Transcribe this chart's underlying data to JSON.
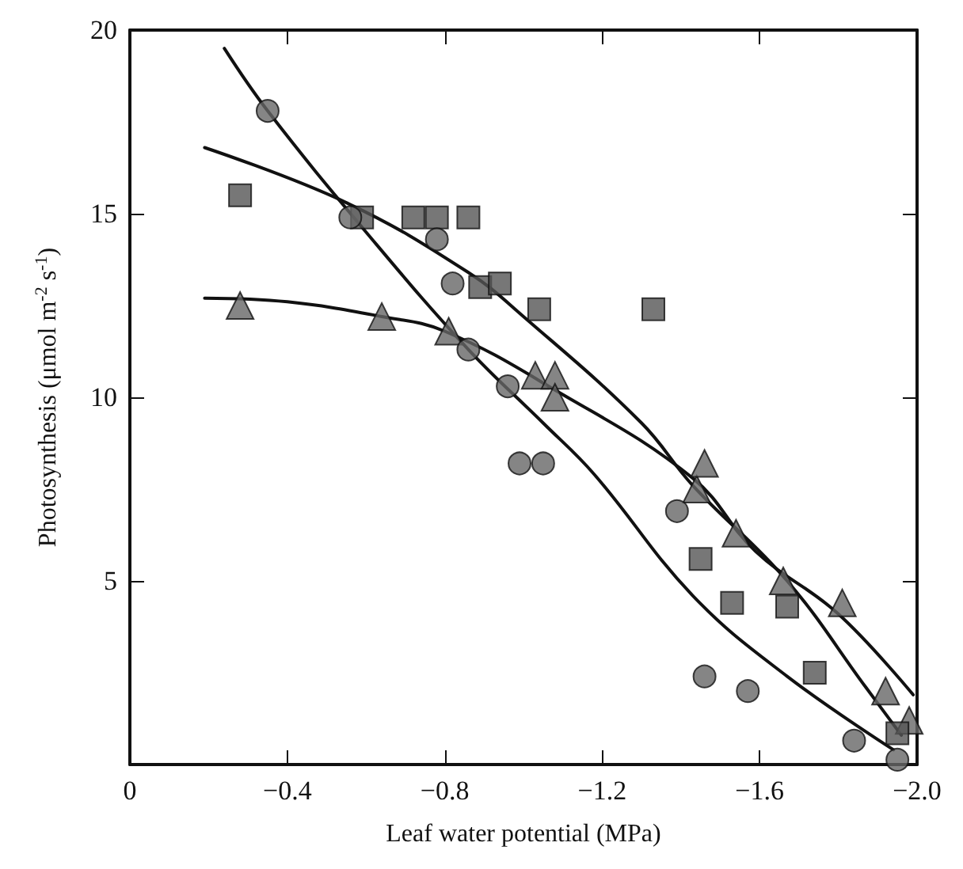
{
  "chart_data": {
    "type": "scatter",
    "xlabel": "Leaf water potential (MPa)",
    "ylabel": "Photosynthesis (μmol m$^{-2}$ s$^{-1}$)",
    "xlim": [
      0,
      -2.0
    ],
    "xticks": [
      0,
      -0.4,
      -0.8,
      -1.2,
      -1.6,
      {
        "value": -2.0,
        "label": "−2.0"
      }
    ],
    "ylim": [
      0,
      20
    ],
    "yticks": [
      5,
      10,
      15,
      20
    ],
    "grid": false,
    "series": [
      {
        "marker": "circle",
        "color": "#666666",
        "x": [
          -0.35,
          -0.56,
          -0.78,
          -0.82,
          -0.86,
          -0.96,
          -0.99,
          -1.05,
          -1.39,
          -1.46,
          -1.57,
          -1.84,
          -1.95
        ],
        "values": [
          17.8,
          14.9,
          14.3,
          13.1,
          11.3,
          10.3,
          8.2,
          8.2,
          6.9,
          2.4,
          2.0,
          0.65,
          0.13
        ]
      },
      {
        "marker": "square",
        "color": "#555555",
        "x": [
          -0.28,
          -0.59,
          -0.72,
          -0.78,
          -0.86,
          -0.89,
          -0.94,
          -1.04,
          -1.33,
          -1.45,
          -1.53,
          -1.67,
          -1.74,
          -1.95
        ],
        "values": [
          15.5,
          14.9,
          14.9,
          14.9,
          14.9,
          13.0,
          13.1,
          12.4,
          12.4,
          5.6,
          4.4,
          4.3,
          2.5,
          0.85
        ]
      },
      {
        "marker": "triangle",
        "color": "#666666",
        "x": [
          -0.28,
          -0.64,
          -0.81,
          -1.03,
          -1.08,
          -1.08,
          -1.44,
          -1.46,
          -1.54,
          -1.66,
          -1.81,
          -1.92,
          -1.98
        ],
        "values": [
          12.5,
          12.2,
          11.8,
          10.6,
          10.6,
          10.0,
          7.5,
          8.2,
          6.3,
          5.0,
          4.4,
          2.0,
          1.2
        ]
      },
      {
        "type": "line",
        "marker": "none",
        "line_style": "solid",
        "color": "#111111",
        "x": [
          -0.24,
          -0.35,
          -0.6,
          -0.86,
          -1.05,
          -1.18,
          -1.43,
          -1.67,
          -1.94
        ],
        "values": [
          19.5,
          17.8,
          14.5,
          11.3,
          9.3,
          7.9,
          4.6,
          2.4,
          0.4
        ]
      },
      {
        "type": "line",
        "marker": "none",
        "line_style": "solid",
        "color": "#111111",
        "x": [
          -0.19,
          -0.55,
          -0.86,
          -1.0,
          -1.3,
          -1.43,
          -1.67,
          -1.87,
          -1.96
        ],
        "values": [
          16.8,
          15.3,
          13.4,
          12.2,
          9.3,
          7.6,
          5.0,
          2.1,
          0.8
        ]
      },
      {
        "type": "line",
        "marker": "none",
        "line_style": "solid",
        "color": "#111111",
        "x": [
          -0.19,
          -0.4,
          -0.64,
          -0.8,
          -1.08,
          -1.43,
          -1.59,
          -1.8,
          -1.99
        ],
        "values": [
          12.7,
          12.6,
          12.2,
          11.8,
          10.2,
          7.8,
          5.8,
          4.1,
          1.9
        ]
      }
    ]
  }
}
